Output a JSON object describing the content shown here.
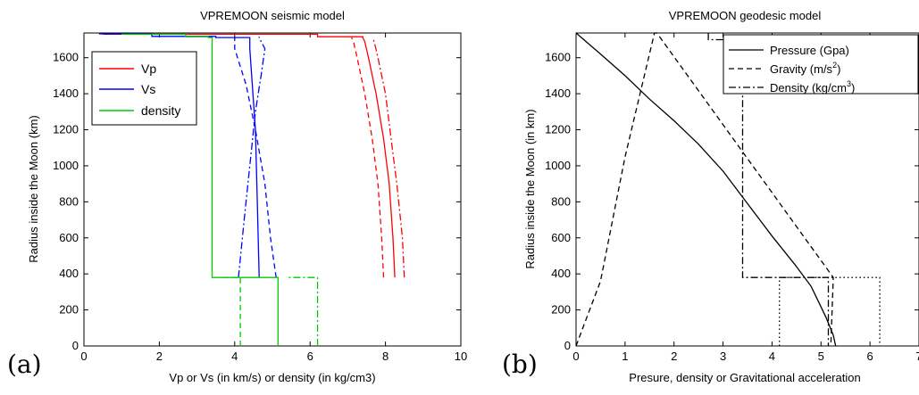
{
  "figure": {
    "panel_a_label": "(a)",
    "panel_b_label": "(b)"
  },
  "chart_data": [
    {
      "type": "line",
      "title": "VPREMOON seismic model",
      "xlabel": "Vp or Vs (in km/s) or density (in kg/cm3)",
      "ylabel": "Radius inside the Moon (km)",
      "xlim": [
        0,
        10
      ],
      "ylim": [
        0,
        1737
      ],
      "xticks": [
        0,
        2,
        4,
        6,
        8,
        10
      ],
      "yticks": [
        0,
        200,
        400,
        600,
        800,
        1000,
        1200,
        1400,
        1600
      ],
      "grid": false,
      "legend": {
        "placement": "top-left",
        "entries": [
          "Vp",
          "Vs",
          "density"
        ]
      },
      "series": [
        {
          "name": "Vp",
          "color": "#ff0000",
          "dash": "solid",
          "x": [
            8.25,
            8.2,
            8.1,
            7.95,
            7.75,
            7.55,
            7.45,
            7.4,
            7.4,
            7.4,
            6.2,
            6.2,
            0.5
          ],
          "y": [
            380,
            600,
            900,
            1150,
            1400,
            1600,
            1690,
            1710,
            1712,
            1716,
            1716,
            1730,
            1730
          ]
        },
        {
          "name": "Vp upper bound",
          "color": "#ff0000",
          "dash": "dashdot",
          "x": [
            8.5,
            8.45,
            8.3,
            8.15,
            8.0,
            7.8,
            7.7,
            7.65
          ],
          "y": [
            380,
            600,
            900,
            1150,
            1400,
            1600,
            1690,
            1712
          ]
        },
        {
          "name": "Vp lower bound",
          "color": "#ff0000",
          "dash": "dashed",
          "x": [
            7.95,
            7.9,
            7.8,
            7.65,
            7.45,
            7.25,
            7.15,
            7.1
          ],
          "y": [
            380,
            600,
            900,
            1150,
            1400,
            1600,
            1690,
            1712
          ]
        },
        {
          "name": "Vs",
          "color": "#0000ff",
          "dash": "solid",
          "x": [
            4.65,
            4.6,
            4.55,
            4.45,
            4.4,
            4.4,
            3.5,
            3.5,
            1.8,
            1.8,
            0.4
          ],
          "y": [
            380,
            800,
            1200,
            1500,
            1650,
            1712,
            1712,
            1718,
            1718,
            1732,
            1732
          ]
        },
        {
          "name": "Vs bound 1",
          "color": "#0000ff",
          "dash": "dashdot",
          "x": [
            4.1,
            4.25,
            4.4,
            4.55,
            4.7,
            4.8,
            4.65,
            4.65
          ],
          "y": [
            380,
            700,
            1000,
            1300,
            1500,
            1650,
            1710,
            1716
          ]
        },
        {
          "name": "Vs bound 2",
          "color": "#0000ff",
          "dash": "dashed",
          "x": [
            5.1,
            4.95,
            4.8,
            4.55,
            4.3,
            4.0,
            4.0,
            4.0
          ],
          "y": [
            380,
            600,
            900,
            1200,
            1450,
            1650,
            1710,
            1716
          ]
        },
        {
          "name": "density",
          "color": "#00cc00",
          "dash": "solid",
          "x": [
            5.15,
            5.15,
            3.4,
            3.4,
            3.3,
            3.3,
            2.7,
            2.7,
            1.0
          ],
          "y": [
            0,
            380,
            380,
            1712,
            1712,
            1716,
            1716,
            1730,
            1730
          ]
        },
        {
          "name": "density outer",
          "color": "#00cc00",
          "dash": "dashdot",
          "x": [
            6.2,
            6.2,
            5.4
          ],
          "y": [
            0,
            380,
            380
          ]
        },
        {
          "name": "density inner",
          "color": "#00cc00",
          "dash": "dashed",
          "x": [
            4.15,
            4.15,
            3.6
          ],
          "y": [
            0,
            380,
            380
          ]
        }
      ]
    },
    {
      "type": "line",
      "title": "VPREMOON geodesic model",
      "xlabel": "Presure, density or Gravitational acceleration",
      "ylabel": "Radius inside the Moon (in km)",
      "xlim": [
        0,
        7
      ],
      "ylim": [
        0,
        1737
      ],
      "xticks": [
        0,
        1,
        2,
        3,
        4,
        5,
        6,
        7
      ],
      "yticks": [
        0,
        200,
        400,
        600,
        800,
        1000,
        1200,
        1400,
        1600
      ],
      "grid": false,
      "legend": {
        "placement": "top-right",
        "entries": [
          {
            "label": "Pressure (Gpa)"
          },
          {
            "label": "Gravity (m/s",
            "sup": "2",
            "after": ")"
          },
          {
            "label": "Density (kg/cm",
            "sup": "3",
            "after": ")"
          }
        ]
      },
      "series": [
        {
          "name": "Pressure (Gpa)",
          "color": "#000000",
          "dash": "solid",
          "x": [
            0,
            0.5,
            1.0,
            1.5,
            2.0,
            2.5,
            3.0,
            3.5,
            4.0,
            4.5,
            4.8,
            5.1,
            5.25,
            5.3
          ],
          "y": [
            1737,
            1620,
            1500,
            1370,
            1250,
            1120,
            970,
            790,
            610,
            440,
            330,
            160,
            60,
            0
          ]
        },
        {
          "name": "Gravity (m/s2)",
          "color": "#000000",
          "dash": "dashed",
          "x": [
            0,
            0.25,
            0.5,
            1.0,
            1.6,
            1.65,
            5.25,
            5.25,
            5.2
          ],
          "y": [
            0,
            180,
            360,
            1050,
            1737,
            1737,
            380,
            380,
            0
          ]
        },
        {
          "name": "Density (kg/cm3)",
          "color": "#000000",
          "dash": "dashdot",
          "x": [
            2.7,
            2.7,
            3.3,
            3.4,
            3.4,
            5.15,
            5.15
          ],
          "y": [
            1737,
            1700,
            1700,
            1690,
            380,
            380,
            0
          ]
        },
        {
          "name": "Density bounds",
          "color": "#000000",
          "dash": "dotted",
          "x": [
            4.15,
            4.15,
            6.2,
            6.2
          ],
          "y": [
            0,
            380,
            380,
            0
          ]
        }
      ]
    }
  ]
}
